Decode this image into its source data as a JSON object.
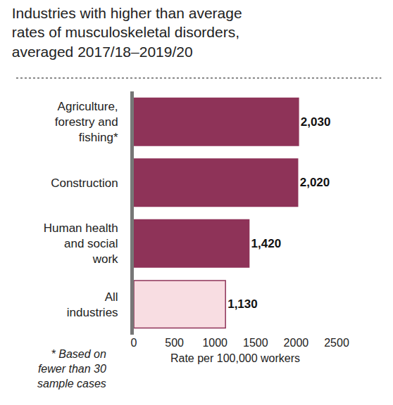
{
  "chart_data": {
    "type": "bar",
    "orientation": "horizontal",
    "title": "Industries with higher than average rates of musculoskeletal disorders, averaged 2017/18–2019/20",
    "categories": [
      "Agriculture, forestry and fishing*",
      "Construction",
      "Human health and social work",
      "All industries"
    ],
    "values": [
      2030,
      2020,
      1420,
      1130
    ],
    "value_labels": [
      "2,030",
      "2,020",
      "1,420",
      "1,130"
    ],
    "colors": [
      "#8e3358",
      "#8e3358",
      "#8e3358",
      "#f8dde2"
    ],
    "data_labels": true,
    "x_label": "Rate per 100,000 workers",
    "xlim": [
      0,
      2500
    ],
    "xticks": [
      0,
      500,
      1000,
      1500,
      2000,
      2500
    ],
    "grid": false,
    "note": "* Based on fewer than 30 sample cases"
  }
}
